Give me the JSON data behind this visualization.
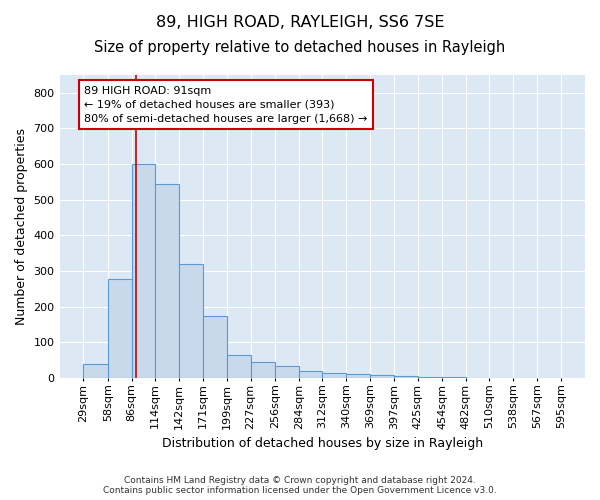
{
  "title": "89, HIGH ROAD, RAYLEIGH, SS6 7SE",
  "subtitle": "Size of property relative to detached houses in Rayleigh",
  "xlabel": "Distribution of detached houses by size in Rayleigh",
  "ylabel": "Number of detached properties",
  "bin_edges": [
    29,
    58,
    86,
    114,
    142,
    171,
    199,
    227,
    256,
    284,
    312,
    340,
    369,
    397,
    425,
    454,
    482,
    510,
    538,
    567,
    595
  ],
  "bin_counts": [
    38,
    278,
    600,
    545,
    320,
    175,
    65,
    45,
    35,
    20,
    15,
    12,
    8,
    5,
    3,
    2,
    1,
    0,
    0,
    1
  ],
  "bar_color": "#c9d9ec",
  "bar_edge_color": "#5b9bd5",
  "vline_x": 91,
  "vline_color": "#cc0000",
  "annotation_line1": "89 HIGH ROAD: 91sqm",
  "annotation_line2": "← 19% of detached houses are smaller (393)",
  "annotation_line3": "80% of semi-detached houses are larger (1,668) →",
  "annotation_box_color": "#cc0000",
  "annotation_text_color": "#000000",
  "ylim": [
    0,
    850
  ],
  "yticks": [
    0,
    100,
    200,
    300,
    400,
    500,
    600,
    700,
    800
  ],
  "title_fontsize": 11.5,
  "subtitle_fontsize": 10.5,
  "axis_label_fontsize": 9,
  "tick_fontsize": 8,
  "footer_text": "Contains HM Land Registry data © Crown copyright and database right 2024.\nContains public sector information licensed under the Open Government Licence v3.0.",
  "background_color": "#ffffff",
  "plot_bg_color": "#dce9f5"
}
